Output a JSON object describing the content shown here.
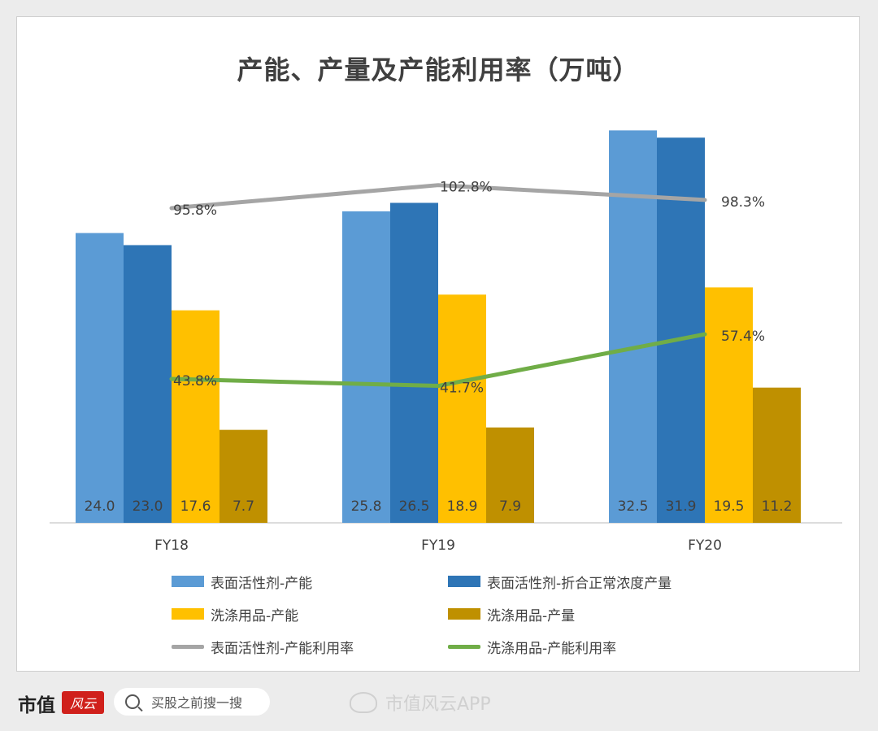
{
  "chart_data": {
    "type": "bar",
    "title": "产能、产量及产能利用率（万吨）",
    "categories": [
      "FY18",
      "FY19",
      "FY20"
    ],
    "series": [
      {
        "name": "表面活性剂-产能",
        "values": [
          24.0,
          25.8,
          32.5
        ],
        "color": "#5b9bd5"
      },
      {
        "name": "表面活性剂-折合正常浓度产量",
        "values": [
          23.0,
          26.5,
          31.9
        ],
        "color": "#2e75b6"
      },
      {
        "name": "洗涤用品-产能",
        "values": [
          17.6,
          18.9,
          19.5
        ],
        "color": "#ffc000"
      },
      {
        "name": "洗涤用品-产量",
        "values": [
          7.7,
          7.9,
          11.2
        ],
        "color": "#bf9000"
      }
    ],
    "line_series": [
      {
        "name": "表面活性剂-产能利用率",
        "values": [
          95.8,
          102.8,
          98.3
        ],
        "labels": [
          "95.8%",
          "102.8%",
          "98.3%"
        ],
        "color": "#a5a5a5"
      },
      {
        "name": "洗涤用品-产能利用率",
        "values": [
          43.8,
          41.7,
          57.4
        ],
        "labels": [
          "43.8%",
          "41.7%",
          "57.4%"
        ],
        "color": "#70ad47"
      }
    ],
    "legend_position": "bottom",
    "grid": false
  },
  "footer": {
    "brand": "市值",
    "brand_logo": "风云",
    "search_placeholder": "买股之前搜一搜",
    "weibo_account": "市值风云APP"
  }
}
